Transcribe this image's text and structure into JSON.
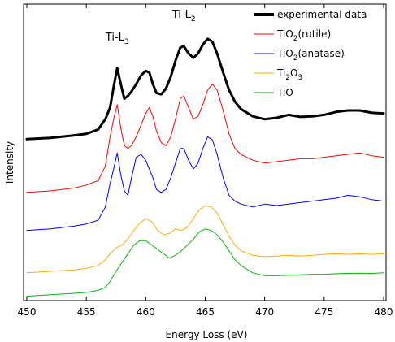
{
  "chart_data": {
    "type": "line",
    "title": "",
    "xlabel": "Energy Loss (eV)",
    "ylabel": "Intensity",
    "xlim": [
      450,
      480
    ],
    "ylim": [
      0,
      1
    ],
    "xticks": [
      450,
      455,
      460,
      465,
      470,
      475,
      480
    ],
    "yticks_shown": false,
    "grid": false,
    "legend_position": "top-right",
    "annotations": [
      {
        "text": "Ti-L3",
        "main": "Ti-L",
        "sub": "3",
        "x": 457.6
      },
      {
        "text": "Ti-L2",
        "main": "Ti-L",
        "sub": "2",
        "x": 463.2
      }
    ],
    "series": [
      {
        "name": "experimental data",
        "legend_parts": [
          {
            "t": "experimental data"
          }
        ],
        "color": "#000000",
        "line_width": 3,
        "x": [
          450,
          452,
          454,
          455,
          456,
          456.6,
          457.0,
          457.3,
          457.6,
          457.9,
          458.2,
          458.5,
          458.8,
          459.2,
          459.6,
          460.0,
          460.3,
          460.6,
          460.9,
          461.3,
          461.7,
          462.1,
          462.5,
          462.9,
          463.2,
          463.6,
          464.0,
          464.4,
          464.8,
          465.2,
          465.6,
          466.0,
          466.5,
          467.0,
          467.5,
          468.0,
          469.0,
          470.0,
          471.0,
          472.0,
          473.0,
          474.0,
          475.0,
          476.0,
          477.0,
          478.0,
          479.0,
          480.0
        ],
        "y": [
          0.552,
          0.556,
          0.565,
          0.57,
          0.585,
          0.62,
          0.66,
          0.73,
          0.795,
          0.74,
          0.69,
          0.7,
          0.715,
          0.74,
          0.77,
          0.785,
          0.78,
          0.74,
          0.71,
          0.705,
          0.725,
          0.765,
          0.82,
          0.865,
          0.87,
          0.845,
          0.83,
          0.845,
          0.875,
          0.895,
          0.885,
          0.845,
          0.78,
          0.72,
          0.68,
          0.655,
          0.63,
          0.62,
          0.625,
          0.635,
          0.628,
          0.63,
          0.635,
          0.645,
          0.65,
          0.65,
          0.642,
          0.64
        ]
      },
      {
        "name": "TiO2(rutile)",
        "legend_parts": [
          {
            "t": "TiO"
          },
          {
            "t": "2",
            "sub": true
          },
          {
            "t": "(rutile)"
          }
        ],
        "color": "#ff0000",
        "line_width": 1,
        "x": [
          450,
          452,
          454,
          455,
          456,
          456.6,
          457.0,
          457.3,
          457.6,
          457.9,
          458.2,
          458.5,
          458.8,
          459.2,
          459.6,
          460.0,
          460.3,
          460.6,
          460.9,
          461.3,
          461.7,
          462.1,
          462.5,
          462.9,
          463.2,
          463.6,
          464.0,
          464.4,
          464.8,
          465.2,
          465.6,
          466.0,
          466.5,
          467.0,
          467.5,
          468.0,
          469.0,
          470.0,
          471.0,
          472.0,
          473.0,
          474.0,
          475.0,
          476.0,
          477.0,
          478.0,
          479.0,
          480.0
        ],
        "y": [
          0.37,
          0.375,
          0.385,
          0.395,
          0.41,
          0.46,
          0.56,
          0.62,
          0.67,
          0.59,
          0.53,
          0.52,
          0.53,
          0.56,
          0.6,
          0.64,
          0.66,
          0.63,
          0.58,
          0.54,
          0.53,
          0.56,
          0.62,
          0.69,
          0.7,
          0.66,
          0.62,
          0.63,
          0.67,
          0.72,
          0.74,
          0.72,
          0.65,
          0.57,
          0.52,
          0.5,
          0.48,
          0.47,
          0.475,
          0.48,
          0.485,
          0.485,
          0.49,
          0.495,
          0.5,
          0.505,
          0.495,
          0.49
        ]
      },
      {
        "name": "TiO2(anatase)",
        "legend_parts": [
          {
            "t": "TiO"
          },
          {
            "t": "2",
            "sub": true
          },
          {
            "t": "(anatase)"
          }
        ],
        "color": "#0000ff",
        "line_width": 1,
        "x": [
          450,
          452,
          454,
          455,
          456,
          456.6,
          457.0,
          457.3,
          457.6,
          457.9,
          458.2,
          458.5,
          458.8,
          459.2,
          459.6,
          460.0,
          460.3,
          460.6,
          460.9,
          461.3,
          461.7,
          462.1,
          462.5,
          462.9,
          463.2,
          463.6,
          464.0,
          464.4,
          464.8,
          465.2,
          465.6,
          466.0,
          466.5,
          467.0,
          467.5,
          468.0,
          469.0,
          470.0,
          471.0,
          472.0,
          473.0,
          474.0,
          475.0,
          476.0,
          477.0,
          478.0,
          479.0,
          480.0
        ],
        "y": [
          0.24,
          0.245,
          0.255,
          0.262,
          0.275,
          0.32,
          0.4,
          0.45,
          0.505,
          0.43,
          0.375,
          0.36,
          0.42,
          0.49,
          0.5,
          0.48,
          0.45,
          0.42,
          0.38,
          0.37,
          0.38,
          0.42,
          0.47,
          0.52,
          0.52,
          0.48,
          0.45,
          0.47,
          0.52,
          0.56,
          0.55,
          0.5,
          0.42,
          0.36,
          0.34,
          0.33,
          0.32,
          0.33,
          0.325,
          0.33,
          0.335,
          0.34,
          0.345,
          0.35,
          0.36,
          0.355,
          0.345,
          0.34
        ]
      },
      {
        "name": "Ti2O3",
        "legend_parts": [
          {
            "t": "Ti"
          },
          {
            "t": "2",
            "sub": true
          },
          {
            "t": "O"
          },
          {
            "t": "3",
            "sub": true
          }
        ],
        "color": "#ffaa00",
        "line_width": 1,
        "x": [
          450,
          452,
          454,
          455,
          456,
          456.6,
          457.0,
          457.5,
          458.0,
          458.5,
          459.0,
          459.5,
          460.0,
          460.5,
          461.0,
          461.5,
          462.0,
          462.5,
          463.0,
          463.5,
          464.0,
          464.5,
          465.0,
          465.5,
          466.0,
          466.5,
          467.0,
          467.5,
          468.0,
          469.0,
          470.0,
          471.0,
          472.0,
          473.0,
          474.0,
          475.0,
          476.0,
          477.0,
          478.0,
          479.0,
          480.0
        ],
        "y": [
          0.095,
          0.1,
          0.105,
          0.11,
          0.12,
          0.14,
          0.16,
          0.18,
          0.19,
          0.21,
          0.24,
          0.265,
          0.28,
          0.27,
          0.24,
          0.225,
          0.23,
          0.245,
          0.24,
          0.25,
          0.28,
          0.31,
          0.325,
          0.32,
          0.3,
          0.26,
          0.22,
          0.19,
          0.17,
          0.155,
          0.15,
          0.152,
          0.155,
          0.152,
          0.155,
          0.158,
          0.16,
          0.158,
          0.16,
          0.158,
          0.16
        ]
      },
      {
        "name": "TiO",
        "legend_parts": [
          {
            "t": "TiO"
          }
        ],
        "color": "#00bb00",
        "line_width": 1,
        "x": [
          450,
          452,
          454,
          455,
          456,
          456.6,
          457.0,
          457.5,
          458.0,
          458.5,
          459.0,
          459.5,
          460.0,
          460.5,
          461.0,
          461.5,
          462.0,
          462.5,
          463.0,
          463.5,
          464.0,
          464.5,
          465.0,
          465.5,
          466.0,
          466.5,
          467.0,
          467.5,
          468.0,
          469.0,
          470.0,
          471.0,
          472.0,
          473.0,
          474.0,
          475.0,
          476.0,
          477.0,
          478.0,
          479.0,
          480.0
        ],
        "y": [
          0.015,
          0.02,
          0.025,
          0.028,
          0.035,
          0.045,
          0.065,
          0.1,
          0.13,
          0.16,
          0.19,
          0.205,
          0.205,
          0.19,
          0.175,
          0.16,
          0.145,
          0.155,
          0.17,
          0.19,
          0.21,
          0.235,
          0.245,
          0.24,
          0.225,
          0.2,
          0.17,
          0.14,
          0.12,
          0.095,
          0.085,
          0.085,
          0.087,
          0.088,
          0.09,
          0.09,
          0.092,
          0.093,
          0.094,
          0.093,
          0.095
        ]
      }
    ]
  }
}
